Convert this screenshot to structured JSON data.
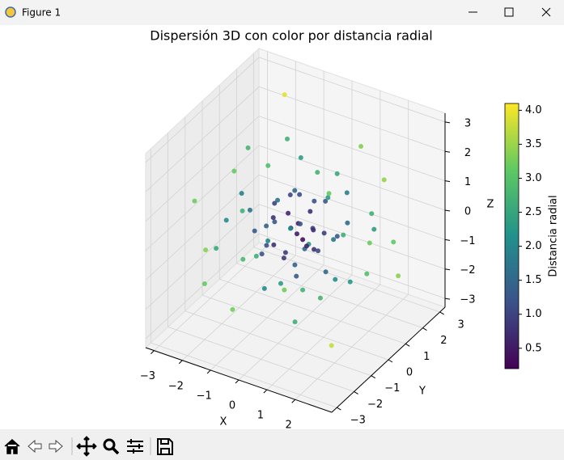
{
  "window": {
    "title": "Figure 1"
  },
  "chart_data": {
    "type": "scatter3d",
    "title": "Dispersión 3D con color por distancia radial",
    "xlabel": "X",
    "ylabel": "Y",
    "zlabel": "Z",
    "x": [
      0.2,
      -0.5,
      0.8,
      -1.1,
      1.3,
      -0.3,
      0.5,
      -1.6,
      1.9,
      -0.9,
      0.1,
      -0.2,
      0.7,
      -0.7,
      1.0,
      -1.3,
      0.4,
      -0.4,
      2.4,
      -2.2,
      0.3,
      -0.6,
      1.5,
      -1.8,
      0.9,
      3.0,
      -2.9,
      -0.1,
      0.3,
      -0.2,
      0.6,
      -0.6,
      0.1,
      -0.4,
      0.9,
      -0.8,
      0.2,
      -0.3,
      0.5,
      1.2,
      -1.0,
      1.1,
      -1.4,
      0.8,
      -0.5,
      1.7,
      -1.9,
      0.0,
      1.4,
      -1.2,
      2.0,
      -2.1,
      0.2,
      -0.8,
      1.6,
      -2.6,
      2.2,
      0.4,
      -0.3,
      2.5,
      -1.6,
      -0.9,
      0.6,
      1.0,
      -1.2,
      0.0,
      0.4,
      -0.1,
      0.7,
      3.1,
      -3.0,
      -0.4,
      0.5,
      1.8,
      -1.0,
      1.3,
      -2.0,
      2.6,
      -0.7
    ],
    "y": [
      0.1,
      0.4,
      -0.3,
      0.6,
      0.9,
      -1.2,
      1.4,
      -0.5,
      -0.8,
      1.8,
      -0.2,
      0.3,
      0.6,
      -0.8,
      -1.1,
      1.1,
      -0.6,
      0.9,
      0.5,
      -1.0,
      2.3,
      -2.1,
      1.7,
      0.2,
      -1.5,
      -0.6,
      1.2,
      -0.1,
      -0.4,
      0.5,
      0.1,
      -0.3,
      0.7,
      -0.6,
      0.2,
      0.1,
      -0.9,
      0.2,
      0.5,
      -0.2,
      -1.0,
      1.2,
      0.7,
      -1.6,
      1.6,
      0.4,
      -0.9,
      -1.8,
      -0.4,
      1.5,
      1.3,
      0.4,
      -2.6,
      2.6,
      -2.2,
      -1.6,
      2.1,
      0.8,
      -1.1,
      -2.0,
      2.0,
      -0.2,
      -0.7,
      0.8,
      -0.4,
      1.1,
      0.0,
      -0.5,
      -0.1,
      0.9,
      -0.3,
      -3.0,
      3.0,
      -1.0,
      1.0,
      0.3,
      -2.0,
      0.9,
      0.3
    ],
    "z": [
      -0.3,
      0.2,
      0.5,
      -0.4,
      0.2,
      0.7,
      -0.9,
      1.0,
      -0.6,
      1.2,
      1.5,
      -1.4,
      0.9,
      -0.6,
      0.3,
      0.0,
      -1.1,
      0.6,
      1.1,
      -0.8,
      -1.3,
      1.6,
      -1.9,
      2.1,
      -2.0,
      0.9,
      0.4,
      0.1,
      0.2,
      -0.1,
      -0.5,
      0.4,
      0.3,
      -0.3,
      0.1,
      0.6,
      -0.2,
      1.0,
      -0.8,
      -0.9,
      0.9,
      1.0,
      -1.2,
      1.2,
      -1.5,
      -1.4,
      0.2,
      -1.0,
      1.8,
      1.9,
      0.0,
      -1.9,
      0.6,
      0.3,
      -0.3,
      1.0,
      -0.8,
      -2.6,
      2.7,
      -2.0,
      3.0,
      -0.7,
      0.8,
      -0.3,
      -0.2,
      0.4,
      -0.4,
      -0.7,
      0.3,
      -1.0,
      -1.5,
      -1.2,
      1.4,
      2.4,
      -2.9,
      2.2,
      -1.4,
      2.1,
      -2.2
    ],
    "c": [
      0.37,
      0.67,
      0.99,
      1.32,
      1.59,
      1.42,
      1.74,
      1.95,
      2.15,
      2.34,
      1.52,
      1.45,
      1.29,
      1.22,
      1.52,
      1.7,
      1.32,
      1.15,
      2.69,
      2.55,
      2.66,
      2.71,
      2.96,
      2.77,
      2.66,
      3.19,
      3.16,
      0.17,
      0.54,
      0.55,
      0.79,
      0.78,
      0.77,
      0.78,
      0.93,
      1.0,
      0.94,
      1.06,
      1.07,
      1.51,
      1.68,
      1.91,
      1.97,
      2.15,
      2.25,
      2.24,
      2.11,
      2.06,
      2.32,
      2.7,
      2.39,
      2.86,
      2.68,
      2.74,
      2.74,
      3.21,
      3.14,
      2.75,
      2.93,
      3.77,
      3.94,
      1.16,
      1.22,
      1.31,
      1.28,
      1.17,
      0.57,
      0.87,
      0.77,
      3.38,
      3.37,
      3.26,
      3.35,
      3.16,
      3.23,
      2.57,
      3.16,
      3.46,
      2.33
    ],
    "colormap": "viridis",
    "colorbar_label": "Distancia radial",
    "clim": [
      0.2,
      4.1
    ],
    "cticks": [
      0.5,
      {
        "value": 1,
        "label": "1.0"
      },
      1.5,
      {
        "value": 2,
        "label": "2.0"
      },
      2.5,
      {
        "value": 3,
        "label": "3.0"
      },
      3.5,
      {
        "value": 4,
        "label": "4.0"
      }
    ],
    "xlim": [
      -3.3,
      3.3
    ],
    "ylim": [
      -3.3,
      3.3
    ],
    "zlim": [
      -3.3,
      3.3
    ],
    "xticks": [
      {
        "value": -3,
        "label": "−3"
      },
      {
        "value": -2,
        "label": "−2"
      },
      {
        "value": -1,
        "label": "−1"
      },
      0,
      1,
      2
    ],
    "yticks": [
      {
        "value": -3,
        "label": "−3"
      },
      {
        "value": -2,
        "label": "−2"
      },
      {
        "value": -1,
        "label": "−1"
      },
      0,
      1,
      2,
      3
    ],
    "zticks": [
      {
        "value": -3,
        "label": "−3"
      },
      {
        "value": -2,
        "label": "−2"
      },
      {
        "value": -1,
        "label": "−1"
      },
      0,
      1,
      2,
      3
    ],
    "grid": true
  }
}
